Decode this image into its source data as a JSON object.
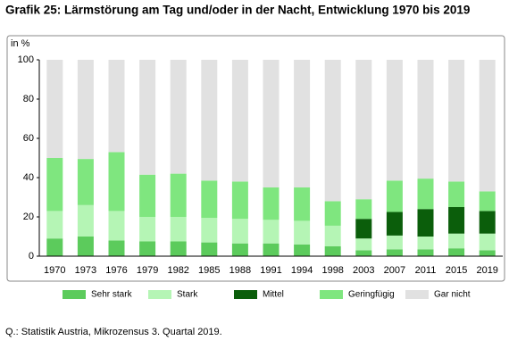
{
  "chart_data": {
    "type": "stacked_bar",
    "title": "Grafik 25: Lärmstörung am Tag und/oder in der Nacht, Entwicklung 1970 bis 2019",
    "y_label": "in %",
    "categories": [
      "1970",
      "1973",
      "1976",
      "1979",
      "1982",
      "1985",
      "1988",
      "1991",
      "1994",
      "1998",
      "2003",
      "2007",
      "2011",
      "2015",
      "2019"
    ],
    "series": [
      {
        "name": "Sehr stark",
        "color": "#5ccb5c",
        "values": [
          9,
          10,
          8,
          7.5,
          7.5,
          7,
          6.5,
          6.5,
          6,
          5,
          3,
          3.5,
          3.5,
          4,
          3
        ]
      },
      {
        "name": "Stark",
        "color": "#b5f5b5",
        "values": [
          14,
          16,
          15,
          12.5,
          12.5,
          12.5,
          12.5,
          12,
          12,
          10.5,
          6,
          7,
          6.5,
          7.5,
          8.5
        ]
      },
      {
        "name": "Mittel",
        "color": "#0b5e0b",
        "values": [
          0,
          0,
          0,
          0,
          0,
          0,
          0,
          0,
          0,
          0,
          10,
          12,
          14,
          13.5,
          11.5
        ]
      },
      {
        "name": "Geringfügig",
        "color": "#7fe67f",
        "values": [
          27,
          23.5,
          30,
          21.5,
          22,
          19,
          19,
          16.5,
          17,
          12.5,
          10,
          16,
          15.5,
          13,
          10
        ]
      },
      {
        "name": "Gar nicht",
        "color": "#e1e1e1",
        "values": [
          50,
          50.5,
          47,
          58.5,
          58,
          61.5,
          62,
          65,
          65,
          72,
          71,
          61.5,
          60.5,
          62,
          67
        ]
      }
    ],
    "ylim": [
      0,
      100
    ],
    "yticks": [
      0,
      20,
      40,
      60,
      80,
      100
    ],
    "grid": false,
    "source": "Q.: Statistik Austria, Mikrozensus 3. Quartal 2019."
  }
}
